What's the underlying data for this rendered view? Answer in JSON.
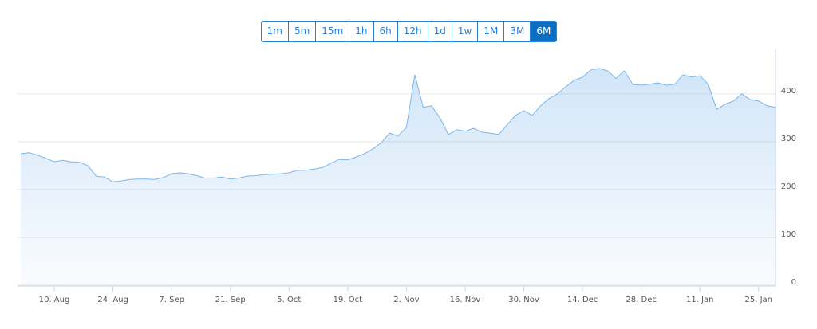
{
  "range_selector": {
    "buttons": [
      "1m",
      "5m",
      "15m",
      "1h",
      "6h",
      "12h",
      "1d",
      "1w",
      "1M",
      "3M",
      "6M"
    ],
    "selected": 10
  },
  "chart_data": {
    "type": "area",
    "color": "#7cb5ec",
    "categories": [
      null,
      null,
      null,
      null,
      "10. Aug",
      null,
      null,
      null,
      null,
      null,
      null,
      "24. Aug",
      null,
      null,
      null,
      null,
      null,
      null,
      "7. Sep",
      null,
      null,
      null,
      null,
      null,
      null,
      "21. Sep",
      null,
      null,
      null,
      null,
      null,
      null,
      "5. Oct",
      null,
      null,
      null,
      null,
      null,
      null,
      "19. Oct",
      null,
      null,
      null,
      null,
      null,
      null,
      "2. Nov",
      null,
      null,
      null,
      null,
      null,
      null,
      "16. Nov",
      null,
      null,
      null,
      null,
      null,
      null,
      "30. Nov",
      null,
      null,
      null,
      null,
      null,
      null,
      "14. Dec",
      null,
      null,
      null,
      null,
      null,
      null,
      "28. Dec",
      null,
      null,
      null,
      null,
      null,
      null,
      "11. Jan",
      null,
      null,
      null,
      null,
      null,
      null,
      "25. Jan",
      null,
      null
    ],
    "values": [
      275,
      277,
      272,
      265,
      258,
      261,
      258,
      257,
      250,
      228,
      226,
      216,
      218,
      221,
      222,
      222,
      221,
      225,
      233,
      235,
      233,
      229,
      224,
      224,
      226,
      222,
      224,
      228,
      229,
      231,
      232,
      233,
      235,
      240,
      240,
      243,
      246,
      255,
      263,
      262,
      268,
      275,
      285,
      298,
      318,
      312,
      330,
      440,
      372,
      375,
      350,
      315,
      325,
      322,
      328,
      320,
      318,
      315,
      335,
      355,
      365,
      355,
      375,
      390,
      400,
      415,
      428,
      435,
      450,
      453,
      448,
      432,
      448,
      420,
      418,
      420,
      423,
      418,
      420,
      440,
      435,
      438,
      420,
      368,
      378,
      385,
      400,
      388,
      385,
      375,
      372
    ],
    "ylim": [
      0,
      493
    ],
    "yticks": [
      0,
      100,
      200,
      300,
      400
    ],
    "grid": true
  }
}
